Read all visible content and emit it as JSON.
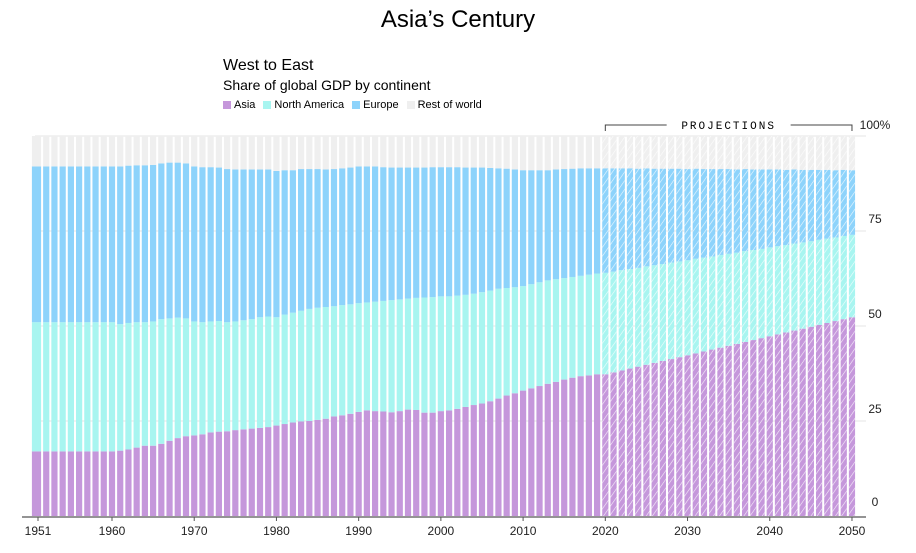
{
  "header": {
    "title": "Asia’s Century"
  },
  "chart_data": {
    "type": "bar",
    "stacked": true,
    "title": "West to East",
    "subtitle": "Share of global GDP by continent",
    "xlabel": "",
    "ylabel": "",
    "ylim": [
      0,
      100
    ],
    "y_ticks": [
      "0",
      "25",
      "50",
      "75",
      "100%"
    ],
    "y_tick_values": [
      0,
      25,
      50,
      75,
      100
    ],
    "x_ticks": [
      "1951",
      "1960",
      "1970",
      "1980",
      "1990",
      "2000",
      "2010",
      "2020",
      "2030",
      "2040",
      "2050"
    ],
    "x_tick_values": [
      1951,
      1960,
      1970,
      1980,
      1990,
      2000,
      2010,
      2020,
      2030,
      2040,
      2050
    ],
    "x_start": 1951,
    "x_end": 2050,
    "projection_start": 2020,
    "projection_label": "PROJECTIONS",
    "legend_position": "top-left",
    "series": [
      {
        "name": "Asia",
        "color": "#c597db",
        "values": [
          17,
          17,
          17,
          17,
          17,
          17,
          17,
          17,
          17,
          17,
          17.2,
          17.5,
          18,
          18.5,
          18.5,
          19,
          19.8,
          20.5,
          21,
          21.2,
          21.5,
          22,
          22.2,
          22.3,
          22.6,
          22.8,
          23,
          23.2,
          23.4,
          23.8,
          24.2,
          24.6,
          24.9,
          25,
          25.3,
          25.6,
          26.2,
          26.5,
          26.9,
          27.4,
          27.8,
          27.6,
          27.5,
          27.3,
          27.6,
          28,
          27.9,
          27.2,
          27.2,
          27.6,
          27.8,
          28.2,
          28.7,
          29.2,
          29.6,
          30.2,
          30.9,
          31.7,
          32.3,
          33,
          33.6,
          34.2,
          34.8,
          35.3,
          35.9,
          36.4,
          36.8,
          37,
          37.3,
          37.3,
          37.8,
          38.3,
          38.8,
          39.3,
          39.8,
          40.3,
          40.8,
          41.3,
          41.8,
          42.3,
          42.8,
          43.3,
          43.8,
          44.3,
          44.8,
          45.3,
          45.8,
          46.3,
          46.8,
          47.3,
          47.8,
          48.3,
          48.8,
          49.3,
          49.8,
          50.3,
          50.8,
          51.3,
          51.8,
          52.3
        ]
      },
      {
        "name": "North America",
        "color": "#a8f5f0",
        "values": [
          34,
          34,
          34,
          34,
          34,
          34,
          34,
          34,
          34,
          34,
          33.3,
          33.3,
          33,
          32.5,
          32.7,
          32.8,
          32.2,
          31.7,
          31,
          30,
          29.5,
          29.2,
          29.1,
          28.7,
          28.6,
          28.7,
          28.8,
          29.1,
          29.1,
          28.5,
          28.8,
          28.9,
          29.1,
          29.5,
          29.5,
          29.4,
          29,
          29,
          28.8,
          28.6,
          28.4,
          28.8,
          29.1,
          29.5,
          29.4,
          29.2,
          29.5,
          30.3,
          30.4,
          30.2,
          30,
          29.8,
          29.5,
          29.3,
          29.3,
          29.1,
          28.9,
          28.3,
          27.9,
          27.5,
          27.4,
          27.3,
          27.2,
          27,
          26.7,
          26.5,
          26.4,
          26.5,
          26.5,
          26.7,
          26.5,
          26.4,
          26.2,
          26,
          25.9,
          25.7,
          25.5,
          25.4,
          25.2,
          25,
          24.9,
          24.7,
          24.5,
          24.4,
          24.2,
          24,
          23.9,
          23.7,
          23.5,
          23.4,
          23.2,
          23,
          22.9,
          22.7,
          22.5,
          22.4,
          22.2,
          22,
          21.9,
          21.7
        ]
      },
      {
        "name": "Europe",
        "color": "#8dd3fb",
        "values": [
          41,
          41,
          41,
          41,
          41,
          41,
          41,
          41,
          41,
          41,
          41.5,
          41.4,
          41.3,
          41.3,
          41.2,
          41,
          41,
          40.8,
          40.8,
          40.8,
          40.8,
          40.6,
          40.4,
          40.3,
          40,
          39.7,
          39.4,
          38.9,
          38.7,
          38.5,
          38,
          37.5,
          37.3,
          36.8,
          36.5,
          36.2,
          36.1,
          36,
          36,
          36,
          35.8,
          35.6,
          35.2,
          34.9,
          34.7,
          34.5,
          34.3,
          34.2,
          34.2,
          34,
          34,
          33.8,
          33.5,
          33.2,
          32.8,
          32.3,
          31.7,
          31.4,
          31,
          30.5,
          30,
          29.5,
          29,
          28.9,
          28.7,
          28.5,
          28.3,
          28,
          27.7,
          27.5,
          27.2,
          26.8,
          26.5,
          26.1,
          25.8,
          25.4,
          25.1,
          24.7,
          24.4,
          24,
          23.7,
          23.3,
          23,
          22.6,
          22.3,
          21.9,
          21.6,
          21.2,
          20.9,
          20.5,
          20.2,
          19.8,
          19.5,
          19.1,
          18.8,
          18.4,
          18.1,
          17.7,
          17.4,
          17
        ]
      },
      {
        "name": "Rest of world",
        "color": "#efefef",
        "values": [
          8,
          8,
          8,
          8,
          8,
          8,
          8,
          8,
          8,
          8,
          8,
          7.8,
          7.7,
          7.7,
          7.6,
          7.2,
          7,
          7,
          7.2,
          8,
          8.2,
          8.2,
          8.3,
          8.7,
          8.8,
          8.8,
          8.8,
          8.8,
          8.8,
          9.2,
          9,
          9,
          8.7,
          8.7,
          8.7,
          8.8,
          8.7,
          8.5,
          8.3,
          8,
          8,
          8,
          8.2,
          8.3,
          8.3,
          8.3,
          8.3,
          8.3,
          8.2,
          8.2,
          8.2,
          8.2,
          8.3,
          8.3,
          8.3,
          8.4,
          8.5,
          8.6,
          8.8,
          9,
          9,
          9,
          9,
          8.8,
          8.7,
          8.6,
          8.5,
          8.5,
          8.5,
          8.5,
          8.5,
          8.5,
          8.5,
          8.6,
          8.5,
          8.6,
          8.6,
          8.6,
          8.6,
          8.7,
          8.6,
          8.7,
          8.7,
          8.7,
          8.7,
          8.8,
          8.7,
          8.8,
          8.8,
          8.8,
          8.8,
          8.9,
          8.8,
          8.9,
          8.9,
          8.9,
          8.9,
          9,
          8.9,
          9
        ]
      }
    ]
  }
}
